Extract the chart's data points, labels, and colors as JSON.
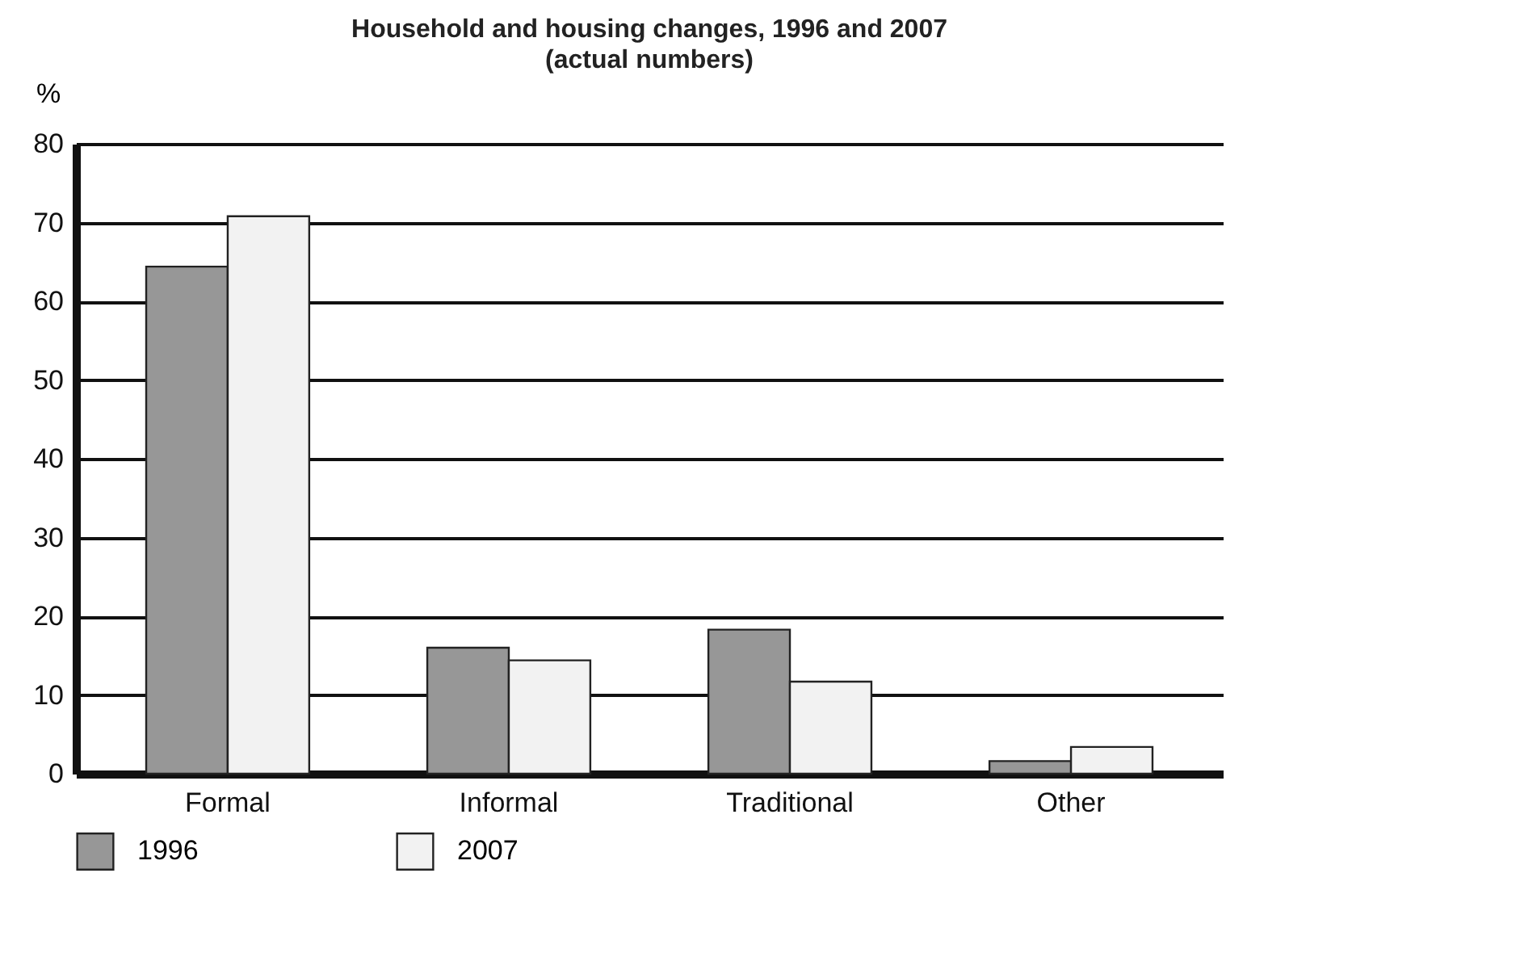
{
  "chart_data": {
    "type": "bar",
    "title": "Household and housing changes, 1996 and 2007",
    "subtitle": "(actual numbers)",
    "ylabel": "%",
    "categories": [
      "Formal",
      "Informal",
      "Traditional",
      "Other"
    ],
    "series": [
      {
        "name": "1996",
        "color": "#979797",
        "values": [
          64.4,
          16.0,
          18.3,
          1.6
        ]
      },
      {
        "name": "2007",
        "color": "#f2f2f2",
        "values": [
          70.8,
          14.4,
          11.7,
          3.4
        ]
      }
    ],
    "ylim": [
      0,
      80
    ],
    "yticks": [
      0,
      10,
      20,
      30,
      40,
      50,
      60,
      70,
      80
    ],
    "grid": "y",
    "legend": "bottom"
  }
}
